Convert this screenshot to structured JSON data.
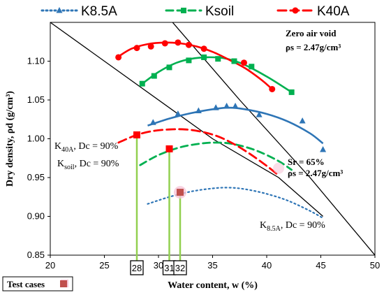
{
  "chart_data": {
    "type": "scatter",
    "xlabel": "Water content, w (%)",
    "ylabel": "Dry density, ρd (g/cm³)",
    "xlim": [
      20,
      50
    ],
    "ylim": [
      0.85,
      1.15
    ],
    "x_ticks": [
      "20",
      "25",
      "30",
      "35",
      "40",
      "45",
      "50"
    ],
    "y_ticks": [
      "0.85",
      "0.90",
      "0.95",
      "1.00",
      "1.05",
      "1.10"
    ],
    "legend_placement": "top",
    "grid": false,
    "series": [
      {
        "name": "K8.5A",
        "color": "#2E75B6",
        "marker": "triangle",
        "points": [
          [
            29.5,
            1.021
          ],
          [
            31.8,
            1.032
          ],
          [
            33.7,
            1.036
          ],
          [
            35.3,
            1.04
          ],
          [
            36.3,
            1.042
          ],
          [
            37.1,
            1.042
          ],
          [
            39.3,
            1.031
          ],
          [
            43.3,
            1.023
          ],
          [
            45.2,
            0.986
          ]
        ],
        "fit": [
          [
            29,
            1.017
          ],
          [
            31,
            1.026
          ],
          [
            33,
            1.033
          ],
          [
            35,
            1.038
          ],
          [
            36.5,
            1.04
          ],
          [
            38,
            1.038
          ],
          [
            40,
            1.032
          ],
          [
            42,
            1.022
          ],
          [
            44,
            1.007
          ],
          [
            45.2,
            0.994
          ]
        ],
        "dc90_curve": [
          [
            29,
            0.916
          ],
          [
            31,
            0.925
          ],
          [
            33,
            0.932
          ],
          [
            35,
            0.936
          ],
          [
            36.5,
            0.937
          ],
          [
            38,
            0.935
          ],
          [
            40,
            0.929
          ],
          [
            42,
            0.92
          ],
          [
            44,
            0.907
          ],
          [
            45.3,
            0.897
          ]
        ]
      },
      {
        "name": "Ksoil",
        "color": "#00B050",
        "marker": "square",
        "points": [
          [
            28.5,
            1.071
          ],
          [
            29.6,
            1.081
          ],
          [
            31.0,
            1.092
          ],
          [
            32.8,
            1.101
          ],
          [
            34.2,
            1.105
          ],
          [
            35.5,
            1.103
          ],
          [
            37.0,
            1.1
          ],
          [
            38.6,
            1.093
          ],
          [
            42.3,
            1.06
          ]
        ],
        "fit": [
          [
            28.5,
            1.071
          ],
          [
            30,
            1.086
          ],
          [
            31.5,
            1.097
          ],
          [
            33,
            1.103
          ],
          [
            34.5,
            1.105
          ],
          [
            36,
            1.104
          ],
          [
            37.5,
            1.098
          ],
          [
            39,
            1.088
          ],
          [
            40.5,
            1.076
          ],
          [
            42.3,
            1.06
          ]
        ],
        "dc90_curve": [
          [
            28.3,
            0.966
          ],
          [
            30,
            0.979
          ],
          [
            32,
            0.989
          ],
          [
            34,
            0.994
          ],
          [
            35.5,
            0.995
          ],
          [
            37,
            0.993
          ],
          [
            39,
            0.985
          ],
          [
            41,
            0.972
          ],
          [
            42.3,
            0.96
          ]
        ]
      },
      {
        "name": "K40A",
        "color": "#FF0000",
        "marker": "circle",
        "points": [
          [
            26.3,
            1.105
          ],
          [
            28.0,
            1.117
          ],
          [
            29.3,
            1.119
          ],
          [
            30.6,
            1.123
          ],
          [
            31.8,
            1.124
          ],
          [
            32.8,
            1.121
          ],
          [
            34.2,
            1.116
          ],
          [
            37.9,
            1.098
          ],
          [
            40.5,
            1.064
          ]
        ],
        "fit": [
          [
            26.3,
            1.106
          ],
          [
            27.5,
            1.116
          ],
          [
            29,
            1.122
          ],
          [
            30.5,
            1.124
          ],
          [
            32,
            1.123
          ],
          [
            33.5,
            1.119
          ],
          [
            35,
            1.112
          ],
          [
            36.5,
            1.102
          ],
          [
            38,
            1.091
          ],
          [
            39.5,
            1.076
          ],
          [
            40.5,
            1.064
          ]
        ],
        "dc90_curve": [
          [
            26.3,
            0.995
          ],
          [
            28,
            1.005
          ],
          [
            29.5,
            1.01
          ],
          [
            31,
            1.012
          ],
          [
            32.5,
            1.012
          ],
          [
            34,
            1.009
          ],
          [
            35.5,
            1.003
          ],
          [
            37,
            0.993
          ],
          [
            38.5,
            0.98
          ],
          [
            40,
            0.965
          ],
          [
            41,
            0.954
          ]
        ]
      }
    ],
    "zero_air_void_line": [
      [
        31.3,
        1.15
      ],
      [
        37.5,
        1.05
      ],
      [
        44.0,
        0.95
      ],
      [
        50.0,
        0.85
      ]
    ],
    "sr65_line": [
      [
        20,
        1.15
      ],
      [
        35,
        1.0
      ],
      [
        41.1,
        0.95
      ],
      [
        45.2,
        0.9
      ]
    ],
    "test_cases": [
      {
        "w": 28,
        "rho": 1.005,
        "color": "#FF0000",
        "label": "28"
      },
      {
        "w": 31,
        "rho": 0.987,
        "color": "#FF0000",
        "label": "31"
      },
      {
        "w": 32,
        "rho": 0.931,
        "color": "#C0504D",
        "label": "32"
      }
    ],
    "annotations": {
      "zav_line1": "Zero air void",
      "zav_line2": "ρs = 2.47g/cm³",
      "sr_line1": "Sr = 65%",
      "sr_line2": "ρs = 2.47g/cm³",
      "k40a": "K40A, Dc = 90%",
      "ksoil": "Ksoil, Dc = 90%",
      "k85a": "K8.5A, Dc = 90%"
    },
    "test_cases_legend": "Test cases"
  }
}
